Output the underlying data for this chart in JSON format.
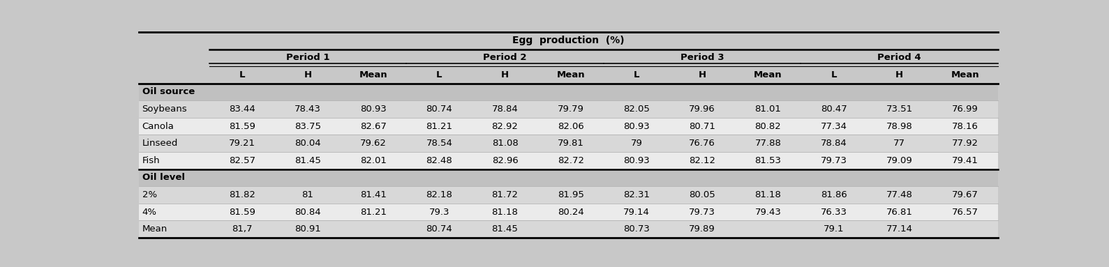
{
  "title": "Egg  production  (%)",
  "periods": [
    "Period 1",
    "Period 2",
    "Period 3",
    "Period 4"
  ],
  "sub_headers": [
    "L",
    "H",
    "Mean"
  ],
  "sections": [
    {
      "label": "Oil source",
      "is_header": true,
      "values": null
    },
    {
      "label": "Soybeans",
      "is_header": false,
      "values": [
        "83.44",
        "78.43",
        "80.93",
        "80.74",
        "78.84",
        "79.79",
        "82.05",
        "79.96",
        "81.01",
        "80.47",
        "73.51",
        "76.99"
      ]
    },
    {
      "label": "Canola",
      "is_header": false,
      "values": [
        "81.59",
        "83.75",
        "82.67",
        "81.21",
        "82.92",
        "82.06",
        "80.93",
        "80.71",
        "80.82",
        "77.34",
        "78.98",
        "78.16"
      ]
    },
    {
      "label": "Linseed",
      "is_header": false,
      "values": [
        "79.21",
        "80.04",
        "79.62",
        "78.54",
        "81.08",
        "79.81",
        "79",
        "76.76",
        "77.88",
        "78.84",
        "77",
        "77.92"
      ]
    },
    {
      "label": "Fish",
      "is_header": false,
      "values": [
        "82.57",
        "81.45",
        "82.01",
        "82.48",
        "82.96",
        "82.72",
        "80.93",
        "82.12",
        "81.53",
        "79.73",
        "79.09",
        "79.41"
      ]
    },
    {
      "label": "Oil level",
      "is_header": true,
      "values": null
    },
    {
      "label": "2%",
      "is_header": false,
      "values": [
        "81.82",
        "81",
        "81.41",
        "82.18",
        "81.72",
        "81.95",
        "82.31",
        "80.05",
        "81.18",
        "81.86",
        "77.48",
        "79.67"
      ]
    },
    {
      "label": "4%",
      "is_header": false,
      "values": [
        "81.59",
        "80.84",
        "81.21",
        "79.3",
        "81.18",
        "80.24",
        "79.14",
        "79.73",
        "79.43",
        "76.33",
        "76.81",
        "76.57"
      ]
    },
    {
      "label": "Mean",
      "is_header": false,
      "values": [
        "81,7",
        "80.91",
        "",
        "80.74",
        "81.45",
        "",
        "80.73",
        "79.89",
        "",
        "79.1",
        "77.14",
        ""
      ]
    }
  ],
  "col_header_bg": "#c8c8c8",
  "section_hdr_bg": "#c0c0c0",
  "row_bg_odd": "#d8d8d8",
  "row_bg_even": "#ebebeb",
  "fig_bg": "#c8c8c8",
  "font_size_data": 9.5,
  "font_size_header": 9.5,
  "font_size_title": 10.0
}
